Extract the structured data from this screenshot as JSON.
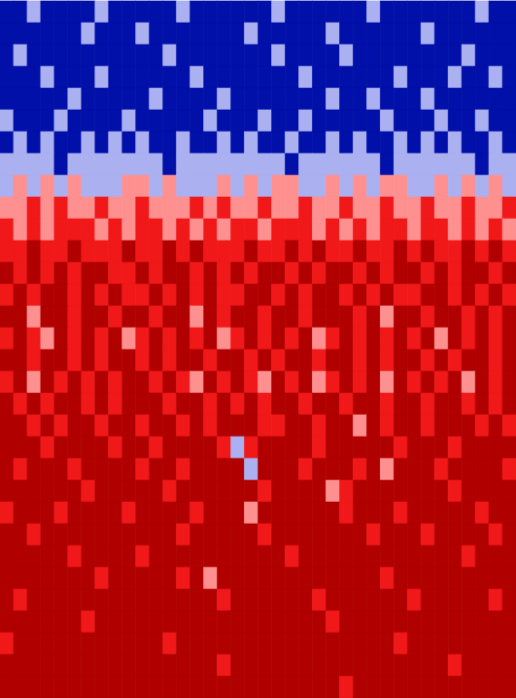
{
  "chart_data": {
    "type": "heatmap",
    "tick_labels": false,
    "colors": [
      "#0010a8",
      "#aab0f0",
      "#ff9090",
      "#f01818",
      "#b00000"
    ],
    "cells": [
      [
        0,
        0,
        1,
        0,
        0,
        0,
        0,
        1,
        0,
        0,
        0,
        0,
        0,
        1,
        0,
        0,
        0,
        0,
        0,
        0,
        1,
        0,
        0,
        0,
        0,
        0,
        0,
        1,
        0,
        0,
        0,
        0,
        0,
        0,
        0,
        1,
        0,
        0
      ],
      [
        0,
        0,
        0,
        0,
        0,
        0,
        1,
        0,
        0,
        0,
        1,
        0,
        0,
        0,
        0,
        0,
        0,
        0,
        1,
        0,
        0,
        0,
        0,
        0,
        1,
        0,
        0,
        0,
        0,
        0,
        0,
        1,
        0,
        0,
        0,
        0,
        0,
        0
      ],
      [
        0,
        1,
        0,
        0,
        0,
        0,
        0,
        0,
        0,
        0,
        0,
        0,
        1,
        0,
        0,
        0,
        0,
        0,
        0,
        0,
        1,
        0,
        0,
        0,
        0,
        1,
        0,
        0,
        0,
        0,
        0,
        0,
        0,
        0,
        1,
        0,
        0,
        0
      ],
      [
        0,
        0,
        0,
        1,
        0,
        0,
        0,
        1,
        0,
        0,
        0,
        0,
        0,
        0,
        1,
        0,
        0,
        0,
        0,
        0,
        0,
        0,
        1,
        0,
        0,
        0,
        0,
        0,
        0,
        1,
        0,
        0,
        0,
        1,
        0,
        0,
        1,
        0
      ],
      [
        0,
        0,
        0,
        0,
        0,
        1,
        0,
        0,
        0,
        0,
        0,
        1,
        0,
        0,
        0,
        0,
        1,
        0,
        0,
        0,
        0,
        0,
        0,
        0,
        1,
        0,
        0,
        1,
        0,
        0,
        0,
        1,
        0,
        0,
        0,
        0,
        0,
        0
      ],
      [
        1,
        0,
        0,
        0,
        1,
        0,
        0,
        0,
        0,
        1,
        0,
        0,
        0,
        0,
        0,
        1,
        0,
        0,
        0,
        1,
        0,
        0,
        1,
        0,
        0,
        0,
        0,
        0,
        1,
        0,
        0,
        0,
        1,
        0,
        0,
        1,
        0,
        0
      ],
      [
        0,
        1,
        0,
        1,
        0,
        0,
        1,
        0,
        1,
        0,
        1,
        0,
        0,
        1,
        0,
        0,
        1,
        0,
        1,
        0,
        0,
        1,
        0,
        0,
        1,
        0,
        1,
        0,
        0,
        1,
        0,
        1,
        0,
        1,
        0,
        0,
        1,
        0
      ],
      [
        1,
        1,
        1,
        1,
        0,
        1,
        1,
        1,
        1,
        1,
        1,
        1,
        0,
        1,
        1,
        1,
        1,
        1,
        1,
        1,
        1,
        0,
        1,
        1,
        1,
        1,
        1,
        1,
        0,
        1,
        1,
        1,
        1,
        1,
        1,
        0,
        1,
        1
      ],
      [
        1,
        2,
        1,
        2,
        1,
        2,
        1,
        1,
        1,
        2,
        2,
        1,
        2,
        1,
        1,
        1,
        2,
        1,
        2,
        1,
        2,
        2,
        1,
        1,
        2,
        1,
        2,
        1,
        2,
        2,
        1,
        1,
        2,
        1,
        2,
        1,
        2,
        1
      ],
      [
        2,
        2,
        3,
        2,
        3,
        2,
        2,
        3,
        2,
        2,
        3,
        2,
        2,
        2,
        3,
        2,
        3,
        2,
        2,
        3,
        2,
        2,
        3,
        2,
        2,
        3,
        2,
        2,
        3,
        2,
        2,
        3,
        2,
        2,
        3,
        2,
        2,
        3
      ],
      [
        3,
        2,
        3,
        2,
        3,
        3,
        3,
        2,
        3,
        2,
        3,
        3,
        2,
        3,
        2,
        3,
        2,
        3,
        3,
        2,
        3,
        3,
        3,
        2,
        3,
        2,
        3,
        2,
        3,
        3,
        2,
        3,
        3,
        2,
        3,
        2,
        3,
        2
      ],
      [
        3,
        3,
        4,
        3,
        3,
        4,
        3,
        3,
        3,
        4,
        3,
        3,
        4,
        3,
        4,
        3,
        3,
        3,
        4,
        3,
        3,
        4,
        3,
        4,
        3,
        3,
        4,
        3,
        3,
        4,
        3,
        4,
        3,
        3,
        4,
        3,
        4,
        3
      ],
      [
        4,
        3,
        4,
        3,
        4,
        3,
        4,
        4,
        3,
        3,
        4,
        3,
        4,
        4,
        3,
        4,
        3,
        4,
        3,
        4,
        4,
        3,
        4,
        3,
        4,
        4,
        3,
        4,
        3,
        4,
        4,
        3,
        4,
        3,
        4,
        4,
        3,
        4
      ],
      [
        3,
        4,
        3,
        4,
        4,
        3,
        4,
        3,
        4,
        3,
        3,
        4,
        3,
        4,
        3,
        4,
        3,
        3,
        4,
        4,
        3,
        4,
        3,
        4,
        4,
        3,
        4,
        3,
        4,
        3,
        3,
        4,
        4,
        3,
        4,
        3,
        4,
        3
      ],
      [
        4,
        4,
        2,
        4,
        4,
        3,
        4,
        4,
        3,
        4,
        4,
        3,
        4,
        4,
        2,
        4,
        3,
        4,
        4,
        3,
        4,
        4,
        3,
        4,
        4,
        4,
        3,
        4,
        2,
        4,
        4,
        3,
        4,
        4,
        3,
        4,
        3,
        4
      ],
      [
        3,
        4,
        3,
        2,
        4,
        3,
        4,
        3,
        4,
        2,
        3,
        4,
        3,
        4,
        3,
        4,
        2,
        3,
        4,
        3,
        4,
        3,
        4,
        2,
        3,
        4,
        3,
        4,
        3,
        4,
        3,
        4,
        2,
        4,
        3,
        4,
        3,
        4
      ],
      [
        4,
        4,
        3,
        4,
        4,
        3,
        4,
        3,
        4,
        4,
        3,
        4,
        3,
        4,
        4,
        3,
        4,
        4,
        3,
        4,
        3,
        4,
        4,
        3,
        4,
        4,
        3,
        4,
        3,
        4,
        4,
        3,
        4,
        3,
        4,
        4,
        3,
        4
      ],
      [
        3,
        4,
        2,
        4,
        3,
        4,
        3,
        4,
        3,
        4,
        4,
        3,
        4,
        3,
        2,
        4,
        3,
        4,
        3,
        2,
        4,
        3,
        4,
        2,
        3,
        4,
        3,
        4,
        2,
        4,
        3,
        4,
        3,
        4,
        2,
        4,
        3,
        4
      ],
      [
        4,
        3,
        4,
        3,
        4,
        4,
        3,
        4,
        3,
        4,
        4,
        4,
        3,
        4,
        4,
        3,
        4,
        3,
        4,
        3,
        4,
        4,
        3,
        4,
        4,
        3,
        4,
        4,
        3,
        4,
        4,
        3,
        4,
        4,
        3,
        4,
        3,
        4
      ],
      [
        4,
        4,
        3,
        4,
        3,
        4,
        4,
        3,
        4,
        4,
        3,
        4,
        4,
        3,
        4,
        3,
        4,
        4,
        4,
        3,
        3,
        4,
        4,
        3,
        4,
        4,
        2,
        4,
        3,
        4,
        4,
        3,
        4,
        4,
        4,
        3,
        4,
        3
      ],
      [
        4,
        4,
        4,
        3,
        4,
        4,
        4,
        4,
        3,
        4,
        4,
        3,
        4,
        4,
        4,
        4,
        3,
        1,
        3,
        4,
        4,
        4,
        4,
        3,
        4,
        4,
        4,
        4,
        4,
        3,
        4,
        4,
        4,
        3,
        4,
        4,
        4,
        4
      ],
      [
        4,
        3,
        4,
        4,
        4,
        3,
        4,
        4,
        4,
        4,
        3,
        4,
        4,
        3,
        4,
        4,
        4,
        4,
        1,
        4,
        4,
        4,
        3,
        4,
        4,
        4,
        3,
        4,
        2,
        4,
        4,
        4,
        3,
        4,
        4,
        4,
        4,
        3
      ],
      [
        4,
        4,
        4,
        4,
        4,
        4,
        3,
        4,
        4,
        4,
        4,
        4,
        3,
        4,
        4,
        4,
        4,
        4,
        4,
        3,
        4,
        4,
        4,
        4,
        2,
        3,
        4,
        4,
        4,
        4,
        4,
        4,
        4,
        3,
        4,
        4,
        4,
        4
      ],
      [
        3,
        4,
        4,
        4,
        3,
        4,
        4,
        4,
        4,
        3,
        4,
        4,
        4,
        4,
        3,
        4,
        4,
        4,
        2,
        4,
        4,
        4,
        4,
        4,
        4,
        3,
        4,
        4,
        4,
        3,
        4,
        4,
        4,
        4,
        4,
        3,
        4,
        4
      ],
      [
        4,
        4,
        3,
        4,
        4,
        4,
        4,
        4,
        4,
        4,
        4,
        4,
        4,
        3,
        4,
        4,
        4,
        4,
        4,
        3,
        4,
        4,
        4,
        4,
        4,
        4,
        4,
        3,
        4,
        4,
        4,
        3,
        4,
        4,
        4,
        4,
        3,
        4
      ],
      [
        4,
        4,
        4,
        4,
        4,
        3,
        4,
        4,
        4,
        4,
        3,
        4,
        4,
        4,
        4,
        4,
        4,
        4,
        4,
        4,
        4,
        3,
        4,
        4,
        4,
        4,
        4,
        4,
        4,
        4,
        4,
        4,
        4,
        4,
        3,
        4,
        4,
        4
      ],
      [
        4,
        4,
        4,
        4,
        4,
        4,
        4,
        3,
        4,
        4,
        4,
        4,
        4,
        3,
        4,
        2,
        4,
        4,
        4,
        4,
        4,
        4,
        4,
        4,
        4,
        4,
        4,
        4,
        3,
        4,
        4,
        4,
        4,
        4,
        4,
        4,
        4,
        4
      ],
      [
        4,
        3,
        4,
        4,
        4,
        4,
        4,
        4,
        4,
        4,
        4,
        4,
        4,
        4,
        4,
        4,
        3,
        4,
        4,
        4,
        4,
        4,
        4,
        3,
        4,
        4,
        4,
        4,
        4,
        4,
        3,
        4,
        4,
        4,
        4,
        4,
        3,
        4
      ],
      [
        4,
        4,
        4,
        4,
        4,
        4,
        3,
        4,
        4,
        4,
        4,
        4,
        4,
        4,
        4,
        4,
        4,
        4,
        4,
        4,
        4,
        4,
        4,
        4,
        3,
        4,
        4,
        4,
        4,
        4,
        4,
        4,
        4,
        4,
        4,
        4,
        4,
        4
      ],
      [
        3,
        4,
        4,
        4,
        4,
        4,
        4,
        4,
        4,
        4,
        4,
        4,
        3,
        4,
        4,
        4,
        4,
        4,
        4,
        4,
        4,
        4,
        4,
        4,
        4,
        4,
        4,
        4,
        4,
        3,
        4,
        4,
        4,
        4,
        4,
        4,
        4,
        4
      ],
      [
        4,
        4,
        4,
        4,
        4,
        4,
        4,
        4,
        4,
        4,
        4,
        4,
        4,
        4,
        4,
        4,
        3,
        4,
        4,
        4,
        4,
        4,
        4,
        4,
        4,
        4,
        4,
        4,
        4,
        4,
        4,
        4,
        4,
        3,
        4,
        4,
        4,
        4
      ],
      [
        4,
        4,
        4,
        4,
        4,
        4,
        4,
        4,
        4,
        4,
        4,
        4,
        4,
        4,
        4,
        4,
        4,
        4,
        4,
        4,
        4,
        4,
        4,
        4,
        4,
        3,
        4,
        4,
        4,
        4,
        4,
        4,
        4,
        4,
        4,
        4,
        4,
        4
      ]
    ]
  }
}
